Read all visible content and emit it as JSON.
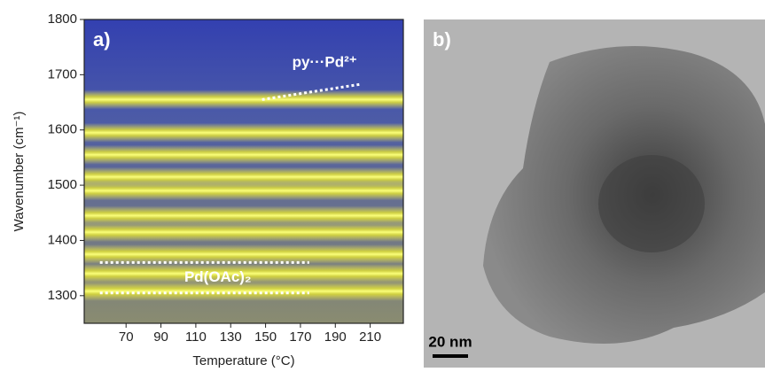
{
  "chart_data": {
    "type": "heatmap",
    "panel_label": "a)",
    "x_label": "Temperature (°C)",
    "y_label": "Wavenumber (cm⁻¹)",
    "xlim": [
      46,
      229
    ],
    "ylim": [
      1250,
      1800
    ],
    "xticks": [
      70,
      90,
      110,
      130,
      150,
      170,
      190,
      210
    ],
    "yticks": [
      1300,
      1400,
      1500,
      1600,
      1700,
      1800
    ],
    "bands": [
      1655,
      1595,
      1555,
      1515,
      1490,
      1445,
      1415,
      1375,
      1340,
      1308
    ],
    "annotations": [
      {
        "text": "py···Pd²⁺",
        "x": [
          148,
          205
        ],
        "y": [
          1655,
          1683
        ]
      },
      {
        "text": "Pd(OAc)₂",
        "x": [
          55,
          175
        ],
        "y": [
          1360,
          1360
        ]
      },
      {
        "text": "Pd(OAc)₂",
        "x": [
          55,
          175
        ],
        "y": [
          1305,
          1305
        ]
      }
    ]
  },
  "image_panel": {
    "panel_label": "b)",
    "scale_bar": "20 nm"
  }
}
